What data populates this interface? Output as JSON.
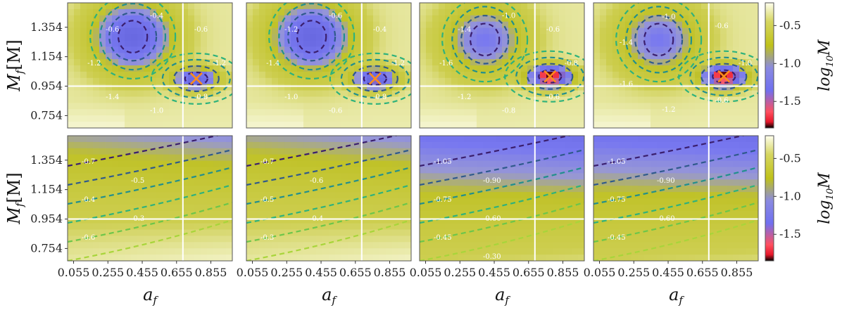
{
  "chart_data": {
    "type": "heatmap",
    "description_of_grid": "2 rows x 4 columns of mismatch maps over (a_f, M_f)",
    "xlabel": "a_f",
    "ylabel": "M_f[M]",
    "x_ticks": [
      "0.055",
      "0.255",
      "0.455",
      "0.655",
      "0.855"
    ],
    "y_ticks": [
      "1.354",
      "1.154",
      "0.954",
      "0.754"
    ],
    "x_range": [
      0.02,
      0.98
    ],
    "y_range": [
      0.67,
      1.52
    ],
    "colorbar_label": "log10 M",
    "colorbar_ticks": [
      "-0.5",
      "-1.0",
      "-1.5"
    ],
    "colorbar_range": [
      -1.85,
      -0.2
    ],
    "injected_value": {
      "a_f": 0.692,
      "M_f": 0.954
    },
    "colors": {
      "low": "#000000",
      "red": "#e8172a",
      "blue": "#7676f0",
      "olive": "#c0c21a",
      "high": "#ffffee",
      "crosshair": "#ffffff",
      "marker": "#ff8c1a"
    },
    "panels": [
      {
        "row": 0,
        "col": 0,
        "best_fit": {
          "a_f": 0.77,
          "M_f": 1.005
        },
        "contour_labels": [
          "-1.2",
          "-0.8",
          "-1.0",
          "-1.4",
          "-1.2",
          "-0.6",
          "-0.4",
          "-0.6"
        ],
        "blobs": [
          {
            "a_f": 0.4,
            "M_f": 1.29,
            "value": -1.35
          },
          {
            "a_f": 0.77,
            "M_f": 1.005,
            "value": -1.4
          }
        ]
      },
      {
        "row": 0,
        "col": 1,
        "best_fit": {
          "a_f": 0.77,
          "M_f": 1.005
        },
        "contour_labels": [
          "-1.2",
          "-0.8",
          "-0.6",
          "-1.0",
          "-1.4",
          "-1.2",
          "-0.6",
          "-0.4"
        ],
        "blobs": [
          {
            "a_f": 0.4,
            "M_f": 1.29,
            "value": -1.35
          },
          {
            "a_f": 0.77,
            "M_f": 1.005,
            "value": -1.45
          }
        ]
      },
      {
        "row": 0,
        "col": 2,
        "best_fit": {
          "a_f": 0.78,
          "M_f": 1.02
        },
        "contour_labels": [
          "-0.8",
          "-0.6",
          "-0.8",
          "-1.2",
          "-1.6",
          "-1.4",
          "-1.0",
          "-0.6"
        ],
        "blobs": [
          {
            "a_f": 0.4,
            "M_f": 1.27,
            "value": -1.05
          },
          {
            "a_f": 0.78,
            "M_f": 1.02,
            "value": -1.85
          }
        ]
      },
      {
        "row": 0,
        "col": 3,
        "best_fit": {
          "a_f": 0.78,
          "M_f": 1.02
        },
        "contour_labels": [
          "-1.0",
          "-0.6",
          "-1.2",
          "-1.6",
          "-1.4",
          "-1.0",
          "-0.6"
        ],
        "blobs": [
          {
            "a_f": 0.4,
            "M_f": 1.27,
            "value": -1.05
          },
          {
            "a_f": 0.78,
            "M_f": 1.02,
            "value": -1.85
          }
        ]
      },
      {
        "row": 1,
        "col": 0,
        "contour_labels": [
          "-0.7",
          "-0.5",
          "-0.4",
          "-0.3",
          "-0.6"
        ],
        "gradient": {
          "top": -0.8,
          "bottom": -0.25
        }
      },
      {
        "row": 1,
        "col": 1,
        "contour_labels": [
          "-0.7",
          "-0.6",
          "-0.5",
          "-0.4",
          "-0.3"
        ],
        "gradient": {
          "top": -0.8,
          "bottom": -0.25
        }
      },
      {
        "row": 1,
        "col": 2,
        "contour_labels": [
          "-1.05",
          "-0.90",
          "-0.75",
          "-0.60",
          "-0.45",
          "-0.30"
        ],
        "gradient": {
          "top": -1.1,
          "bottom": -0.35
        }
      },
      {
        "row": 1,
        "col": 3,
        "contour_labels": [
          "-1.05",
          "-0.90",
          "-0.75",
          "-0.60",
          "-0.45"
        ],
        "gradient": {
          "top": -1.1,
          "bottom": -0.35
        }
      }
    ]
  },
  "labels": {
    "xlabel_text": "a",
    "xlabel_sub": "f",
    "ylabel_text": "M",
    "ylabel_sub": "f",
    "ylabel_unit": "[M]",
    "cb_text": "log",
    "cb_sub": "10",
    "cb_sym": "M"
  }
}
